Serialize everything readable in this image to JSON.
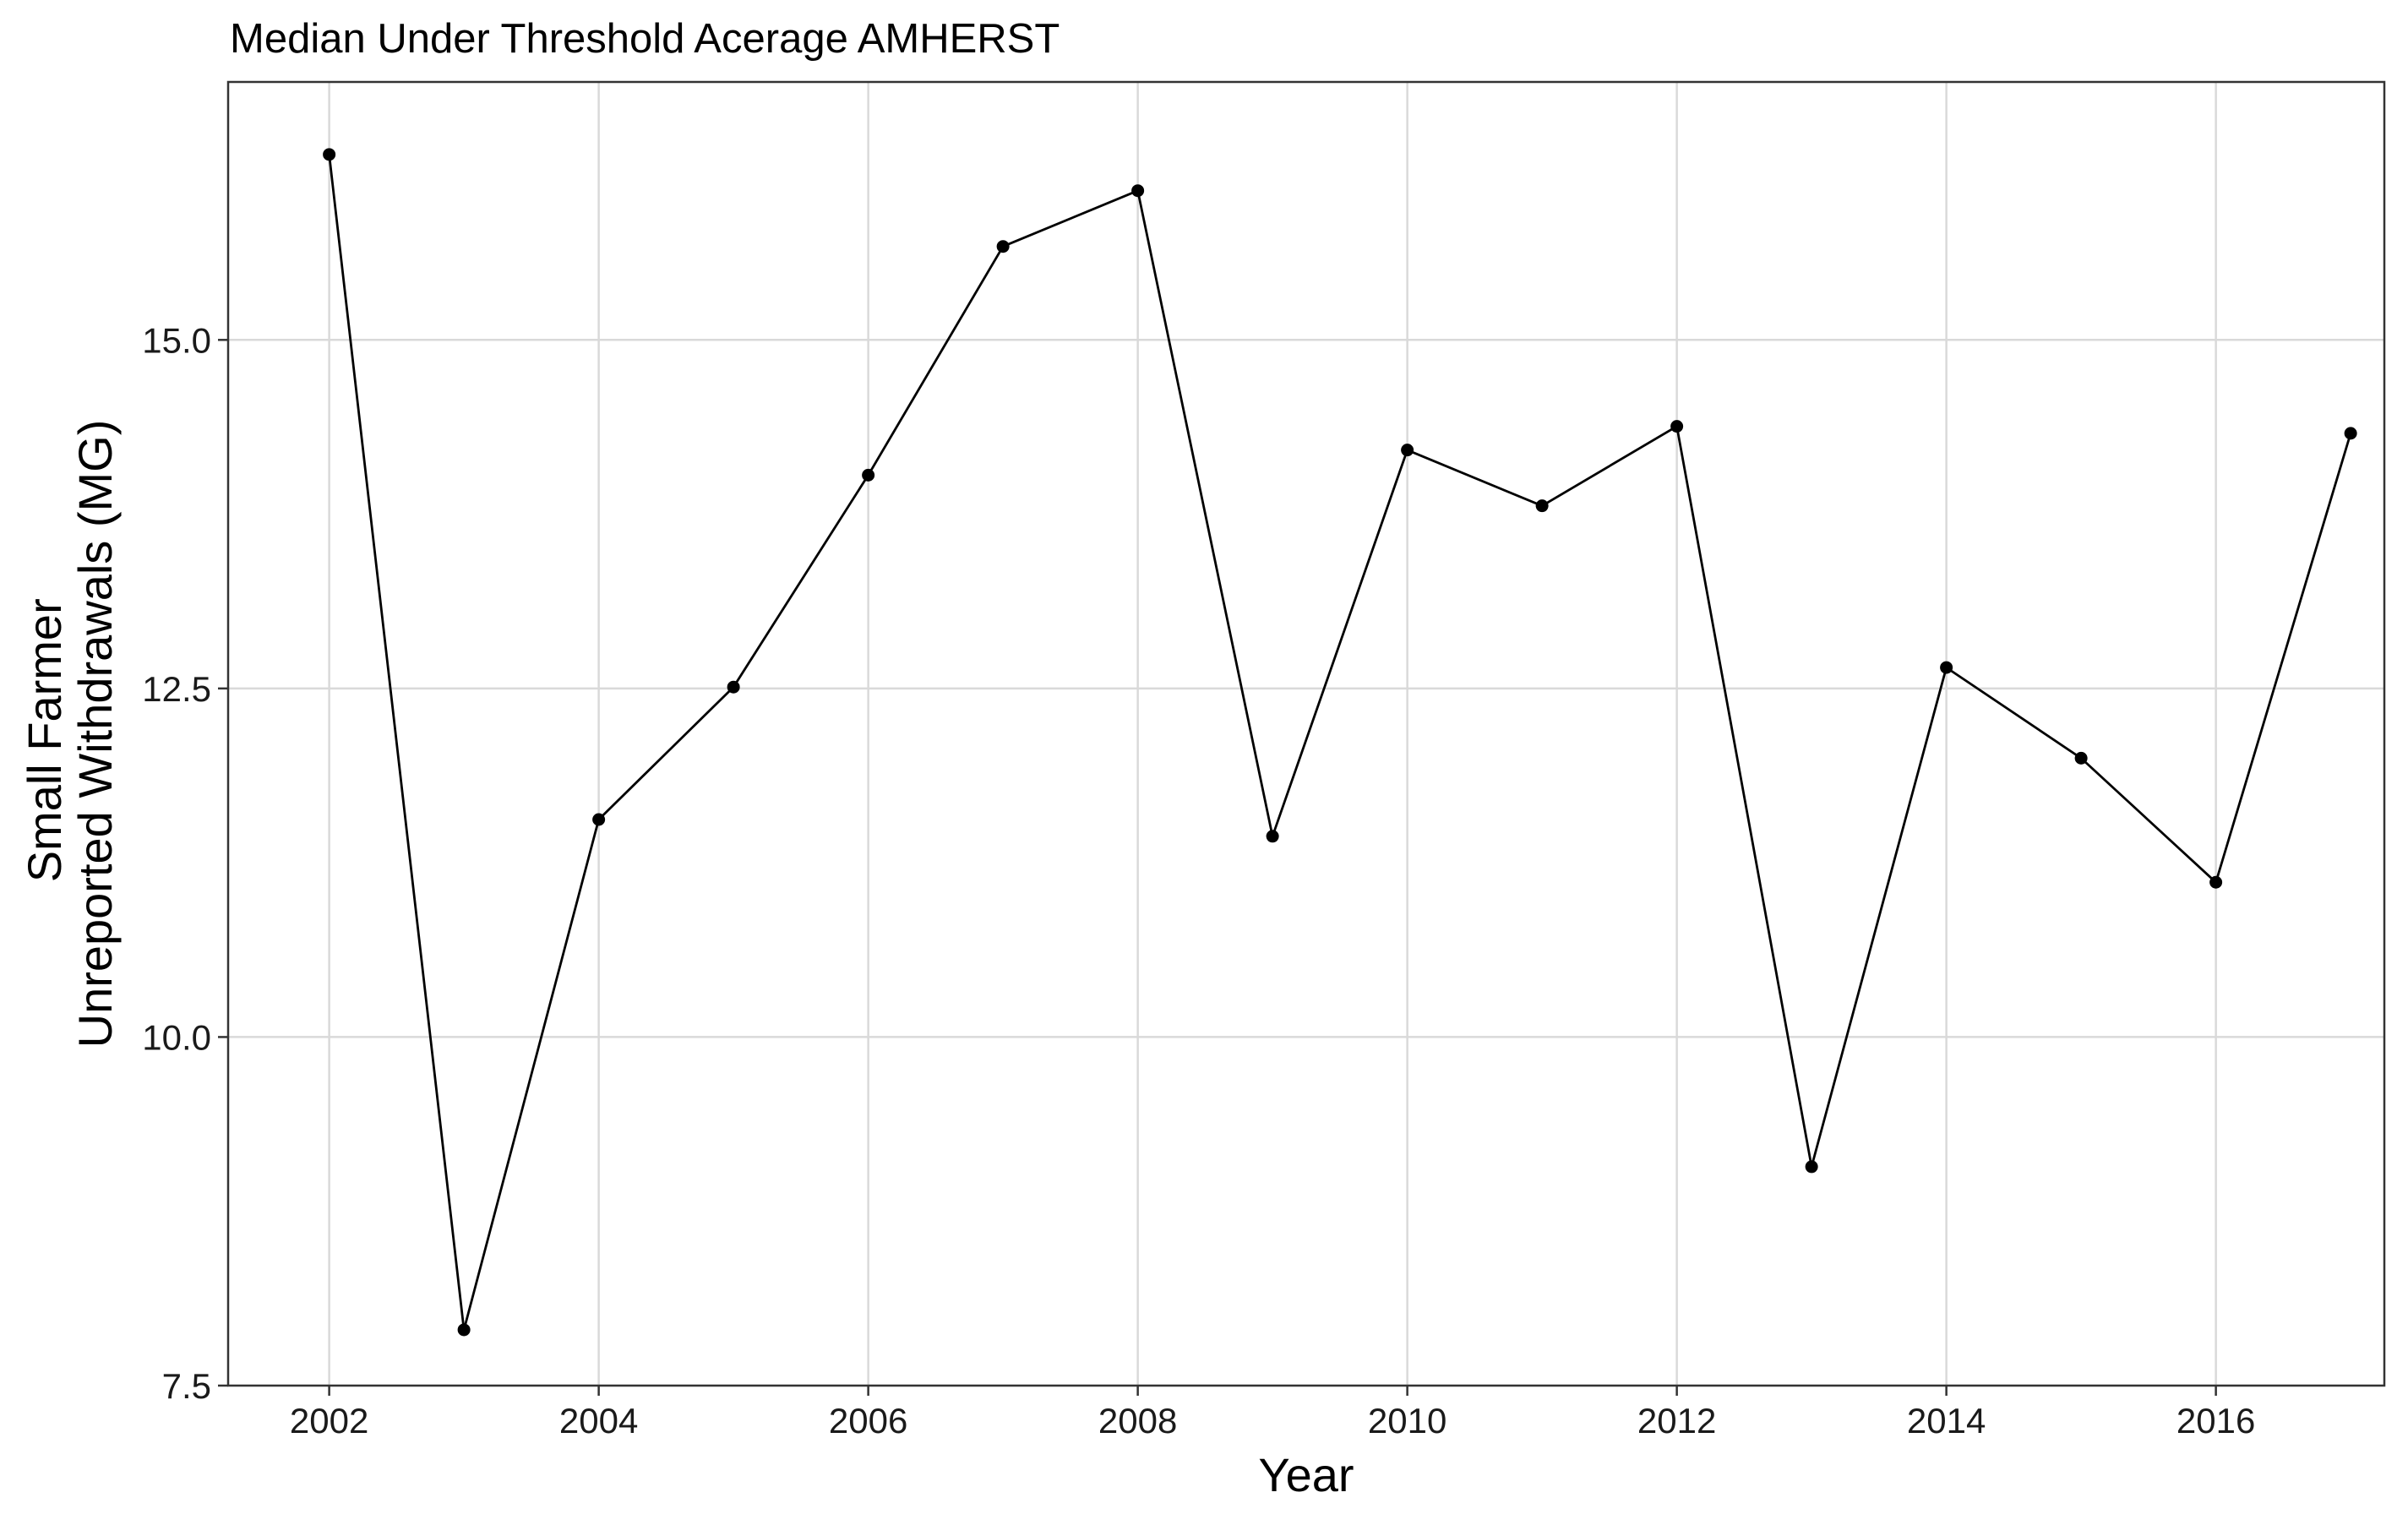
{
  "chart_data": {
    "type": "line",
    "title": "Median Under Threshold Acerage AMHERST",
    "xlabel": "Year",
    "ylabel_lines": [
      "Small Farmer",
      "Unreported Withdrawals (MG)"
    ],
    "xlim": [
      2001.25,
      2017.25
    ],
    "ylim": [
      7.5,
      16.85
    ],
    "x_ticks": [
      2002,
      2004,
      2006,
      2008,
      2010,
      2012,
      2014,
      2016
    ],
    "x_tick_labels": [
      "2002",
      "2004",
      "2006",
      "2008",
      "2010",
      "2012",
      "2014",
      "2016"
    ],
    "y_ticks": [
      7.5,
      10.0,
      12.5,
      15.0
    ],
    "y_tick_labels": [
      "7.5",
      "10.0",
      "12.5",
      "15.0"
    ],
    "grid": true,
    "legend": "none",
    "series": [
      {
        "x": [
          2002,
          2003,
          2004,
          2005,
          2006,
          2007,
          2008,
          2009,
          2010,
          2011,
          2012,
          2013,
          2014,
          2015,
          2016,
          2017
        ],
        "values": [
          16.33,
          7.9,
          11.56,
          12.51,
          14.03,
          15.67,
          16.07,
          11.44,
          14.21,
          13.81,
          14.38,
          9.07,
          12.65,
          12.0,
          11.11,
          14.33
        ]
      }
    ],
    "colors": {
      "line": "#000000",
      "point": "#000000",
      "grid": "#d9d9d9",
      "panel_border": "#333333",
      "background": "#ffffff"
    }
  }
}
